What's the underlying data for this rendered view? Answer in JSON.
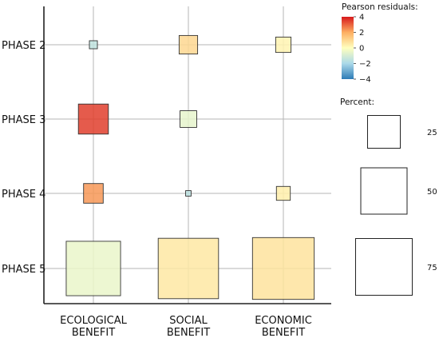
{
  "chart_data": {
    "type": "balloon",
    "rows": [
      "PHASE 2",
      "PHASE 3",
      "PHASE 4",
      "PHASE 5"
    ],
    "columns": [
      "ECOLOGICAL\nBENEFIT",
      "SOCIAL\nBENEFIT",
      "ECONOMIC\nBENEFIT"
    ],
    "cells": [
      {
        "row": "PHASE 2",
        "column": "ECOLOGICAL\nBENEFIT",
        "percent": 1.5,
        "residual": -1.5
      },
      {
        "row": "PHASE 2",
        "column": "SOCIAL\nBENEFIT",
        "percent": 8,
        "residual": 1.0
      },
      {
        "row": "PHASE 2",
        "column": "ECONOMIC\nBENEFIT",
        "percent": 5.5,
        "residual": 0.3
      },
      {
        "row": "PHASE 3",
        "column": "ECOLOGICAL\nBENEFIT",
        "percent": 21,
        "residual": 3.5
      },
      {
        "row": "PHASE 3",
        "column": "SOCIAL\nBENEFIT",
        "percent": 6.5,
        "residual": -0.6
      },
      {
        "row": "PHASE 3",
        "column": "ECONOMIC\nBENEFIT",
        "percent": 0,
        "residual": 0
      },
      {
        "row": "PHASE 4",
        "column": "ECOLOGICAL\nBENEFIT",
        "percent": 9,
        "residual": 2.3
      },
      {
        "row": "PHASE 4",
        "column": "SOCIAL\nBENEFIT",
        "percent": 0.7,
        "residual": -1.6
      },
      {
        "row": "PHASE 4",
        "column": "ECONOMIC\nBENEFIT",
        "percent": 4.5,
        "residual": 0.4
      },
      {
        "row": "PHASE 5",
        "column": "ECOLOGICAL\nBENEFIT",
        "percent": 69,
        "residual": -0.5
      },
      {
        "row": "PHASE 5",
        "column": "SOCIAL\nBENEFIT",
        "percent": 85,
        "residual": 0.6
      },
      {
        "row": "PHASE 5",
        "column": "ECONOMIC\nBENEFIT",
        "percent": 89,
        "residual": 0.7
      }
    ],
    "color_legend": {
      "title": "Pearson residuals:",
      "ticks": [
        4,
        2,
        0,
        -2,
        -4
      ],
      "tick_labels": [
        "4",
        "2",
        "0",
        "−2",
        "−4"
      ],
      "range": [
        -4,
        4
      ],
      "colors": [
        "#2c7bb6",
        "#abd9e9",
        "#ffffbf",
        "#fdae61",
        "#d7191c"
      ]
    },
    "size_legend": {
      "title": "Percent:",
      "values": [
        25,
        50,
        75
      ],
      "labels": [
        "25",
        "50",
        "75"
      ]
    },
    "grid": true,
    "legend_position": "right"
  }
}
